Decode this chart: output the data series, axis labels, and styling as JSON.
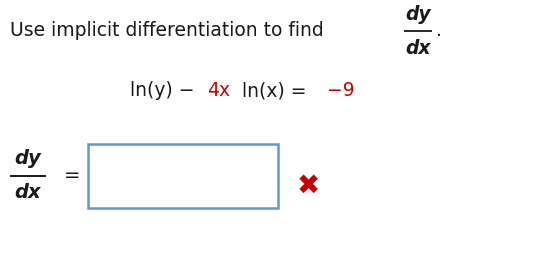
{
  "bg_color": "#ffffff",
  "box_color": "#5b9bd5",
  "red_color": "#cc0000",
  "black_color": "#1a1a1a",
  "figsize": [
    5.46,
    2.66
  ],
  "dpi": 100,
  "title_prefix": "Use implicit differentiation to find",
  "eq_black1": "ln(y) − ",
  "eq_red1": "4x",
  "eq_black2": " ln(x) = ",
  "eq_red2": "−9",
  "ans_num": "dy",
  "ans_den": "dx",
  "frac_num": "dy",
  "frac_den": "dx",
  "period": "."
}
